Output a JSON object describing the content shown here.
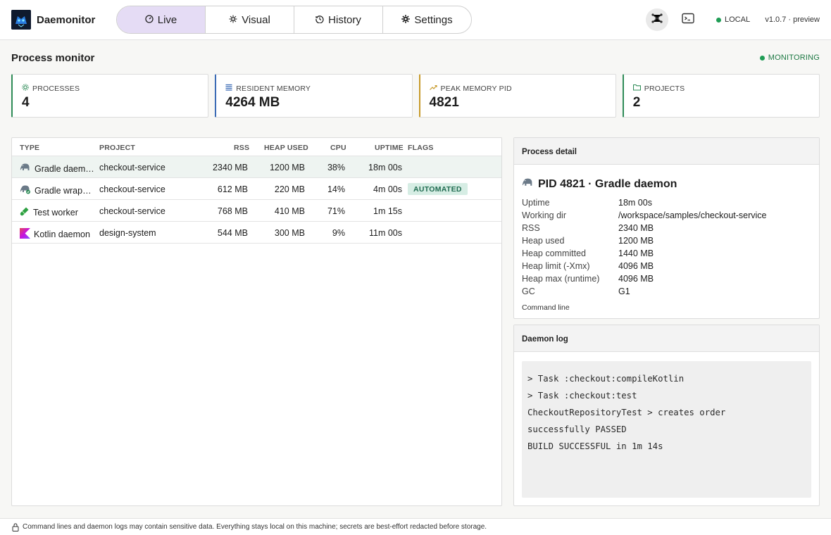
{
  "app": {
    "title": "Daemonitor",
    "version": "v1.0.7 · preview",
    "env": "LOCAL"
  },
  "nav": {
    "tabs": [
      {
        "label": "Live",
        "icon": "gauge-icon",
        "active": true
      },
      {
        "label": "Visual",
        "icon": "hub-icon",
        "active": false
      },
      {
        "label": "History",
        "icon": "history-icon",
        "active": false
      },
      {
        "label": "Settings",
        "icon": "gear-icon",
        "active": false
      }
    ]
  },
  "page": {
    "title": "Process monitor",
    "status": "MONITORING"
  },
  "stats": [
    {
      "label": "PROCESSES",
      "value": "4",
      "icon": "process-icon"
    },
    {
      "label": "RESIDENT MEMORY",
      "value": "4264 MB",
      "icon": "list-icon"
    },
    {
      "label": "PEAK MEMORY PID",
      "value": "4821",
      "icon": "trend-icon"
    },
    {
      "label": "PROJECTS",
      "value": "2",
      "icon": "folder-icon"
    }
  ],
  "table": {
    "headers": {
      "type": "TYPE",
      "project": "PROJECT",
      "rss": "RSS",
      "heap": "HEAP USED",
      "cpu": "CPU",
      "uptime": "UPTIME",
      "flags": "FLAGS"
    },
    "rows": [
      {
        "type": "Gradle daemon",
        "project": "checkout-service",
        "rss": "2340 MB",
        "heap": "1200 MB",
        "cpu": "38%",
        "uptime": "18m 00s",
        "flag": "",
        "icon": "elephant-icon"
      },
      {
        "type": "Gradle wrapper",
        "project": "checkout-service",
        "rss": "612 MB",
        "heap": "220 MB",
        "cpu": "14%",
        "uptime": "4m 00s",
        "flag": "AUTOMATED",
        "icon": "elephant-wrapper-icon"
      },
      {
        "type": "Test worker",
        "project": "checkout-service",
        "rss": "768 MB",
        "heap": "410 MB",
        "cpu": "71%",
        "uptime": "1m 15s",
        "flag": "",
        "icon": "test-tube-icon"
      },
      {
        "type": "Kotlin daemon",
        "project": "design-system",
        "rss": "544 MB",
        "heap": "300 MB",
        "cpu": "9%",
        "uptime": "11m 00s",
        "flag": "",
        "icon": "kotlin-icon"
      }
    ]
  },
  "detail": {
    "header": "Process detail",
    "title": "PID 4821 · Gradle daemon",
    "fields": [
      {
        "k": "Uptime",
        "v": "18m 00s"
      },
      {
        "k": "Working dir",
        "v": "/workspace/samples/checkout-service"
      },
      {
        "k": "RSS",
        "v": "2340 MB"
      },
      {
        "k": "Heap used",
        "v": "1200 MB"
      },
      {
        "k": "Heap committed",
        "v": "1440 MB"
      },
      {
        "k": "Heap limit (-Xmx)",
        "v": "4096 MB"
      },
      {
        "k": "Heap max (runtime)",
        "v": "4096 MB"
      },
      {
        "k": "GC",
        "v": "G1"
      }
    ],
    "command_line_label": "Command line"
  },
  "log": {
    "header": "Daemon log",
    "lines": [
      "> Task :checkout:compileKotlin",
      "> Task :checkout:test",
      "CheckoutRepositoryTest > creates order",
      "successfully PASSED",
      "BUILD SUCCESSFUL in 1m 14s"
    ]
  },
  "footer": {
    "notice": "Command lines and daemon logs may contain sensitive data. Everything stays local on this machine; secrets are best-effort redacted before storage."
  },
  "colors": {
    "accent": "#e5dcf5",
    "ok": "#1f9d55",
    "selected_row": "#eef4f1",
    "badge_bg": "#d6ede4"
  }
}
